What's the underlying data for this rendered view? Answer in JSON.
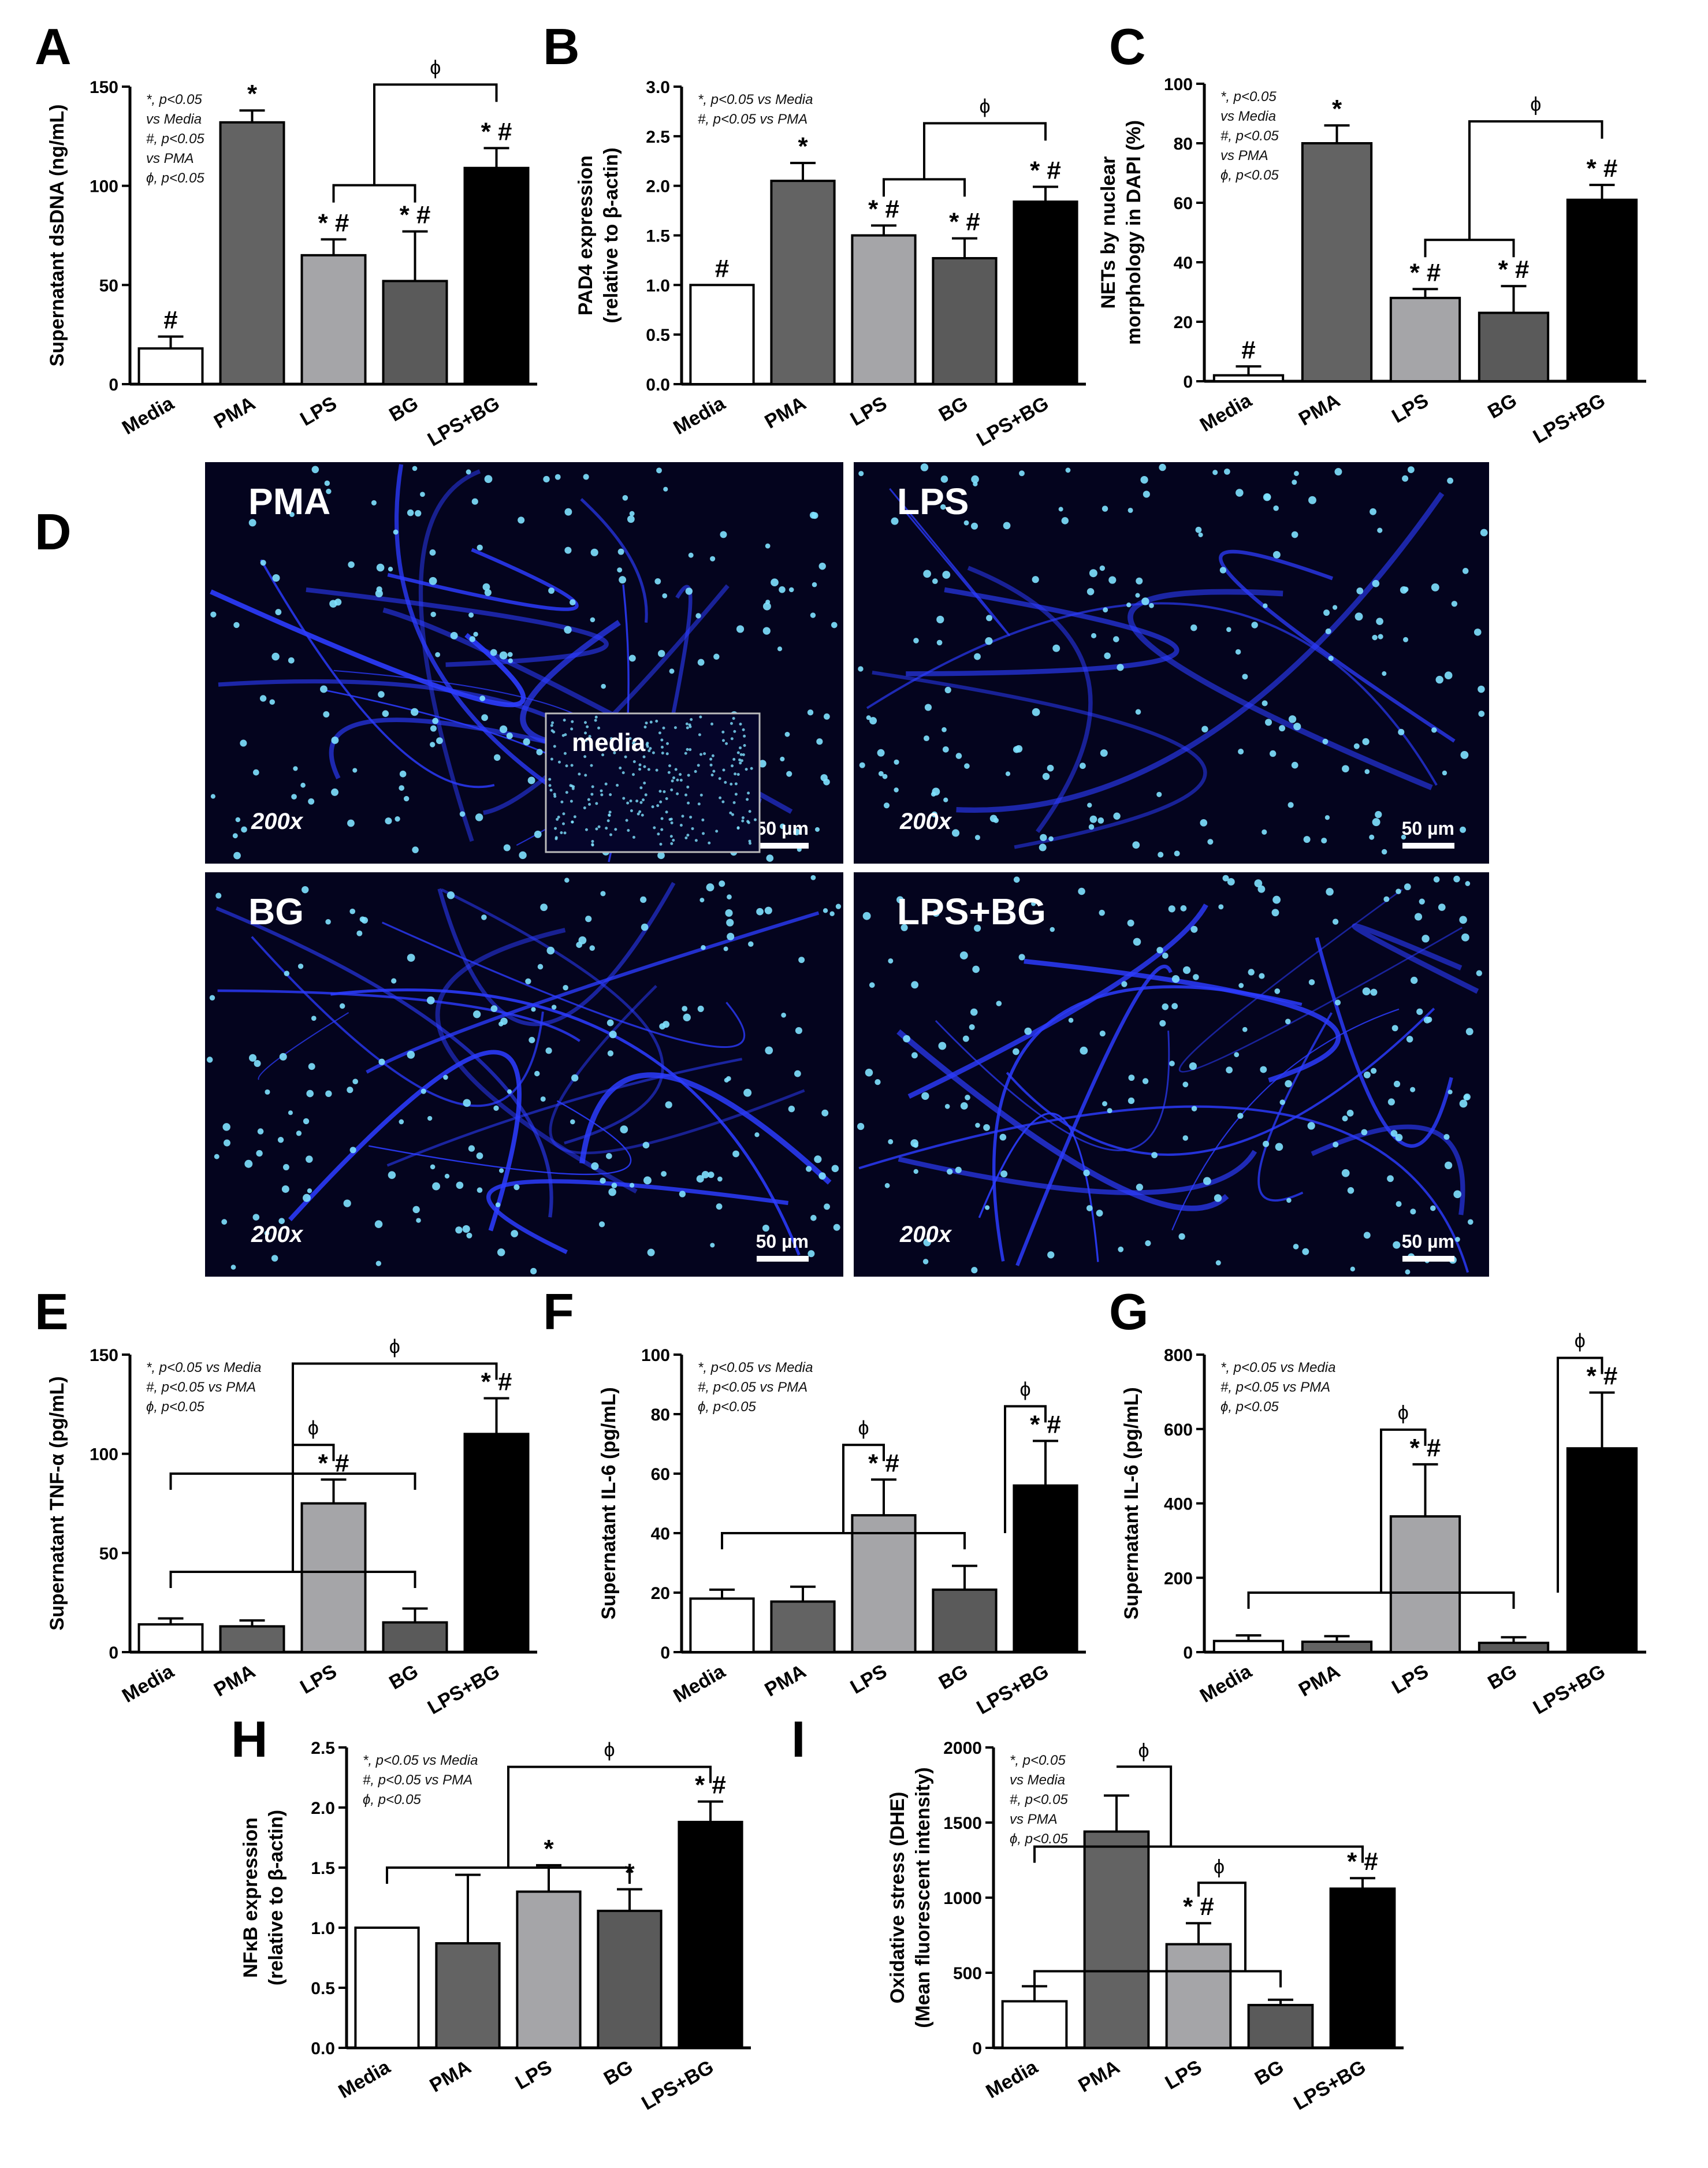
{
  "panel_letters": [
    "A",
    "B",
    "C",
    "D",
    "E",
    "F",
    "G",
    "H",
    "I"
  ],
  "colors": {
    "Media": "#ffffff",
    "PMA": "#636363",
    "LPS": "#a5a5a8",
    "BG": "#5a5a5a",
    "LPS+BG": "#000000",
    "micro_bg": "#04041e",
    "micro_fiber": "#2c3cff",
    "micro_nucleus": "#7fe2ff"
  },
  "micrograph": {
    "panels": [
      {
        "label": "PMA",
        "magnification": "200x",
        "scale": "50 µm",
        "inset": "media"
      },
      {
        "label": "LPS",
        "magnification": "200x",
        "scale": "50 µm",
        "inset": ""
      },
      {
        "label": "BG",
        "magnification": "200x",
        "scale": "50 µm",
        "inset": ""
      },
      {
        "label": "LPS+BG",
        "magnification": "200x",
        "scale": "50 µm",
        "inset": ""
      }
    ]
  },
  "chart_data": [
    {
      "panel": "A",
      "type": "bar",
      "categories": [
        "Media",
        "PMA",
        "LPS",
        "BG",
        "LPS+BG"
      ],
      "values": [
        18,
        132,
        65,
        52,
        109
      ],
      "errors": [
        6,
        6,
        8,
        25,
        10
      ],
      "ylabel": "Supernatant dsDNA (ng/mL)",
      "ylim": [
        0,
        150
      ],
      "yticks": [
        "0",
        "50",
        "100",
        "150"
      ],
      "marks": [
        "#",
        "*",
        "* #",
        "* #",
        "* #"
      ],
      "legend_text": [
        "*, p<0.05",
        "vs Media",
        "#, p<0.05",
        "vs PMA",
        "ϕ, p<0.05"
      ],
      "brackets": [
        {
          "type": "group",
          "from": [
            2,
            3
          ],
          "to": 4,
          "label": "ϕ"
        }
      ]
    },
    {
      "panel": "B",
      "type": "bar",
      "categories": [
        "Media",
        "PMA",
        "LPS",
        "BG",
        "LPS+BG"
      ],
      "values": [
        1.0,
        2.05,
        1.5,
        1.27,
        1.84
      ],
      "errors": [
        0,
        0.18,
        0.1,
        0.2,
        0.15
      ],
      "ylabel_lines": [
        "PAD4 expression",
        "(relative to β-actin)"
      ],
      "ylim": [
        0,
        3.0
      ],
      "yticks": [
        "0.0",
        "0.5",
        "1.0",
        "1.5",
        "2.0",
        "2.5",
        "3.0"
      ],
      "marks": [
        "#",
        "*",
        "* #",
        "* #",
        "* #"
      ],
      "legend_text": [
        "*, p<0.05 vs Media",
        "#, p<0.05 vs PMA"
      ],
      "brackets": [
        {
          "type": "group",
          "from": [
            2,
            3
          ],
          "to": 4,
          "label": "ϕ"
        }
      ]
    },
    {
      "panel": "C",
      "type": "bar",
      "categories": [
        "Media",
        "PMA",
        "LPS",
        "BG",
        "LPS+BG"
      ],
      "values": [
        2,
        80,
        28,
        23,
        61
      ],
      "errors": [
        3,
        6,
        3,
        9,
        5
      ],
      "ylabel_lines": [
        "NETs by nuclear",
        "morphology in DAPI (%)"
      ],
      "ylim": [
        0,
        100
      ],
      "yticks": [
        "0",
        "20",
        "40",
        "60",
        "80",
        "100"
      ],
      "marks": [
        "#",
        "*",
        "* #",
        "* #",
        "* #"
      ],
      "legend_text": [
        "*, p<0.05",
        "vs Media",
        "#, p<0.05",
        "vs PMA",
        "ϕ, p<0.05"
      ],
      "brackets": [
        {
          "type": "group",
          "from": [
            2,
            3
          ],
          "to": 4,
          "label": "ϕ"
        }
      ]
    },
    {
      "panel": "E",
      "type": "bar",
      "categories": [
        "Media",
        "PMA",
        "LPS",
        "BG",
        "LPS+BG"
      ],
      "values": [
        14,
        13,
        75,
        15,
        110
      ],
      "errors": [
        3,
        3,
        12,
        7,
        18
      ],
      "ylabel": "Supernatant TNF-α (pg/mL)",
      "ylim": [
        0,
        150
      ],
      "yticks": [
        "0",
        "50",
        "100",
        "150"
      ],
      "marks": [
        "",
        "",
        "* #",
        "",
        "* #"
      ],
      "legend_text": [
        "*, p<0.05 vs Media",
        "#, p<0.05 vs PMA",
        "ϕ, p<0.05"
      ],
      "brackets": [
        {
          "type": "span",
          "from": [
            0,
            3
          ],
          "to": 2,
          "label": "ϕ"
        },
        {
          "type": "span",
          "from": [
            0,
            3
          ],
          "to": 4,
          "label": "ϕ"
        }
      ]
    },
    {
      "panel": "F",
      "type": "bar",
      "categories": [
        "Media",
        "PMA",
        "LPS",
        "BG",
        "LPS+BG"
      ],
      "values": [
        18,
        17,
        46,
        21,
        56
      ],
      "errors": [
        3,
        5,
        12,
        8,
        15
      ],
      "ylabel": "Supernatant IL-6 (pg/mL)",
      "ylim": [
        0,
        100
      ],
      "yticks": [
        "0",
        "20",
        "40",
        "60",
        "80",
        "100"
      ],
      "marks": [
        "",
        "",
        "* #",
        "",
        "* #"
      ],
      "legend_text": [
        "*, p<0.05 vs Media",
        "#, p<0.05 vs PMA",
        "ϕ, p<0.05"
      ],
      "brackets": [
        {
          "type": "split",
          "from": [
            0,
            3
          ],
          "to": 2,
          "label": "ϕ"
        },
        {
          "type": "split2",
          "from": [
            0,
            3
          ],
          "to": 4,
          "label": "ϕ"
        }
      ]
    },
    {
      "panel": "G",
      "type": "bar",
      "categories": [
        "Media",
        "PMA",
        "LPS",
        "BG",
        "LPS+BG"
      ],
      "values": [
        30,
        28,
        365,
        25,
        548
      ],
      "errors": [
        15,
        15,
        140,
        15,
        150
      ],
      "ylabel": "Supernatant IL-6 (pg/mL)",
      "ylim": [
        0,
        800
      ],
      "yticks": [
        "0",
        "200",
        "400",
        "600",
        "800"
      ],
      "marks": [
        "",
        "",
        "* #",
        "",
        "* #"
      ],
      "legend_text": [
        "*, p<0.05 vs Media",
        "#, p<0.05 vs PMA",
        "ϕ, p<0.05"
      ],
      "brackets": [
        {
          "type": "split",
          "from": [
            0,
            3
          ],
          "to": 2,
          "label": "ϕ"
        },
        {
          "type": "split2",
          "from": [
            0,
            3
          ],
          "to": 4,
          "label": "ϕ"
        }
      ]
    },
    {
      "panel": "H",
      "type": "bar",
      "categories": [
        "Media",
        "PMA",
        "LPS",
        "BG",
        "LPS+BG"
      ],
      "values": [
        1.0,
        0.87,
        1.3,
        1.14,
        1.88
      ],
      "errors": [
        0,
        0.57,
        0.22,
        0.18,
        0.17
      ],
      "ylabel_lines": [
        "NFκB expression",
        "(relative to β-actin)"
      ],
      "ylim": [
        0,
        2.5
      ],
      "yticks": [
        "0.0",
        "0.5",
        "1.0",
        "1.5",
        "2.0",
        "2.5"
      ],
      "marks": [
        "",
        "",
        "*",
        "*",
        "* #"
      ],
      "legend_text": [
        "*, p<0.05 vs Media",
        "#, p<0.05 vs PMA",
        "ϕ, p<0.05"
      ],
      "brackets": [
        {
          "type": "span",
          "from": [
            0,
            3
          ],
          "to": 4,
          "label": "ϕ"
        }
      ]
    },
    {
      "panel": "I",
      "type": "bar",
      "categories": [
        "Media",
        "PMA",
        "LPS",
        "BG",
        "LPS+BG"
      ],
      "values": [
        310,
        1440,
        690,
        285,
        1060
      ],
      "errors": [
        100,
        240,
        140,
        35,
        70
      ],
      "ylabel_lines": [
        "Oxidative stress (DHE)",
        "(Mean fluorescent intensity)"
      ],
      "ylim": [
        0,
        2000
      ],
      "yticks": [
        "0",
        "500",
        "1000",
        "1500",
        "2000"
      ],
      "marks": [
        "",
        "",
        "* #",
        "",
        "* #"
      ],
      "legend_text": [
        "*, p<0.05",
        "vs Media",
        "#, p<0.05",
        "vs PMA",
        "ϕ, p<0.05"
      ],
      "brackets": [
        {
          "type": "line",
          "from": [
            0,
            4
          ],
          "level": 1340
        },
        {
          "type": "line",
          "from": [
            0,
            3
          ],
          "level": 510
        },
        {
          "type": "phiPMA",
          "label": "ϕ"
        },
        {
          "type": "phiLPSBG",
          "label": "ϕ"
        }
      ]
    }
  ]
}
